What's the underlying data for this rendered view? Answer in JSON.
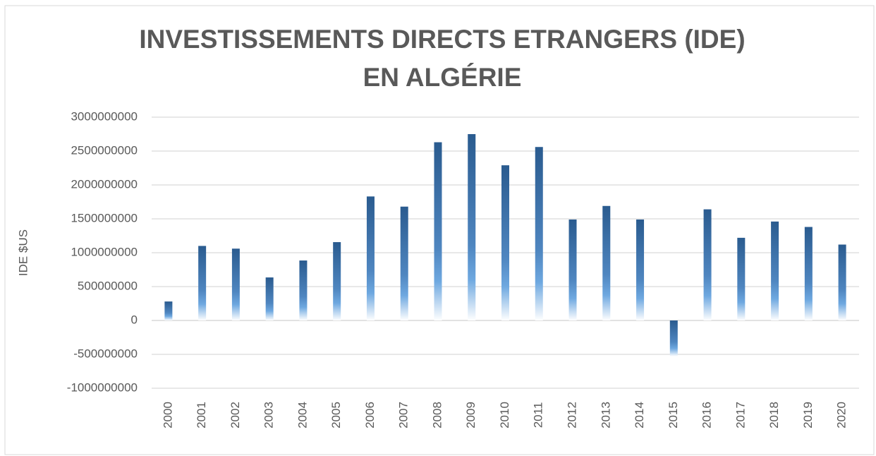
{
  "chart_data": {
    "type": "bar",
    "title": [
      "INVESTISSEMENTS DIRECTS ETRANGERS (IDE)",
      "EN ALGÉRIE"
    ],
    "y_label": "IDE $US",
    "categories": [
      "2000",
      "2001",
      "2002",
      "2003",
      "2004",
      "2005",
      "2006",
      "2007",
      "2008",
      "2009",
      "2010",
      "2011",
      "2012",
      "2013",
      "2014",
      "2015",
      "2016",
      "2017",
      "2018",
      "2019",
      "2020"
    ],
    "values": [
      280000000,
      1100000000,
      1060000000,
      635000000,
      885000000,
      1156000000,
      1830000000,
      1680000000,
      2630000000,
      2750000000,
      2290000000,
      2560000000,
      1490000000,
      1690000000,
      1490000000,
      -530000000,
      1640000000,
      1220000000,
      1460000000,
      1380000000,
      1120000000
    ],
    "color": "#2a5b8f",
    "ylim": [
      -1000000000,
      3000000000
    ],
    "yticks": [
      -1000000000,
      -500000000,
      0,
      500000000,
      1000000000,
      1500000000,
      2000000000,
      2500000000,
      3000000000
    ],
    "grid": true
  }
}
